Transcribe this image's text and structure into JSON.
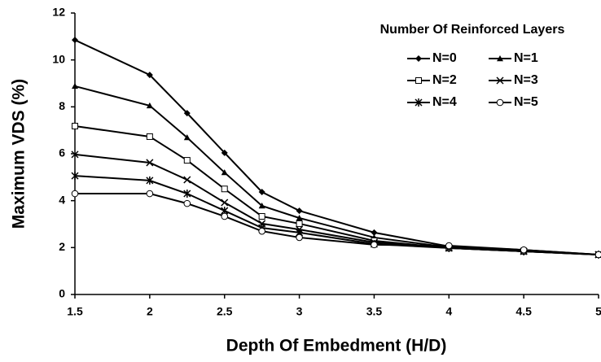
{
  "chart_data": {
    "type": "line",
    "xlabel": "Depth Of Embedment (H/D)",
    "ylabel": "Maximum VDS (%)",
    "legend_title": "Number Of Reinforced Layers",
    "legend": "top-right",
    "grid": false,
    "x": [
      1.5,
      2,
      2.25,
      2.5,
      2.75,
      3,
      3.5,
      4,
      4.5,
      5
    ],
    "xlim": [
      1.5,
      5
    ],
    "xticks": [
      1.5,
      2,
      2.5,
      3,
      3.5,
      4,
      4.5,
      5
    ],
    "ylim": [
      0,
      12
    ],
    "yticks": [
      0,
      2,
      4,
      6,
      8,
      10,
      12
    ],
    "series": [
      {
        "name": "N=0",
        "color": "#000000",
        "marker": "diamond",
        "values": [
          10.85,
          9.36,
          7.73,
          6.04,
          4.37,
          3.57,
          2.64,
          2.05,
          1.9,
          1.7
        ]
      },
      {
        "name": "N=1",
        "color": "#000000",
        "marker": "triangle",
        "values": [
          8.88,
          8.05,
          6.69,
          5.2,
          3.78,
          3.26,
          2.43,
          2.01,
          1.87,
          1.7
        ]
      },
      {
        "name": "N=2",
        "color": "#000000",
        "marker": "open-square",
        "values": [
          7.18,
          6.73,
          5.72,
          4.5,
          3.33,
          3.02,
          2.29,
          1.98,
          1.84,
          1.7
        ]
      },
      {
        "name": "N=3",
        "color": "#000000",
        "marker": "x",
        "values": [
          5.97,
          5.62,
          4.89,
          3.92,
          3.02,
          2.77,
          2.22,
          1.98,
          1.84,
          1.7
        ]
      },
      {
        "name": "N=4",
        "color": "#000000",
        "marker": "star",
        "values": [
          5.06,
          4.86,
          4.3,
          3.57,
          2.84,
          2.64,
          2.15,
          1.98,
          1.84,
          1.7
        ]
      },
      {
        "name": "N=5",
        "color": "#000000",
        "marker": "open-circle",
        "values": [
          4.3,
          4.3,
          3.88,
          3.33,
          2.7,
          2.43,
          2.12,
          2.08,
          1.9,
          1.7
        ]
      }
    ]
  }
}
